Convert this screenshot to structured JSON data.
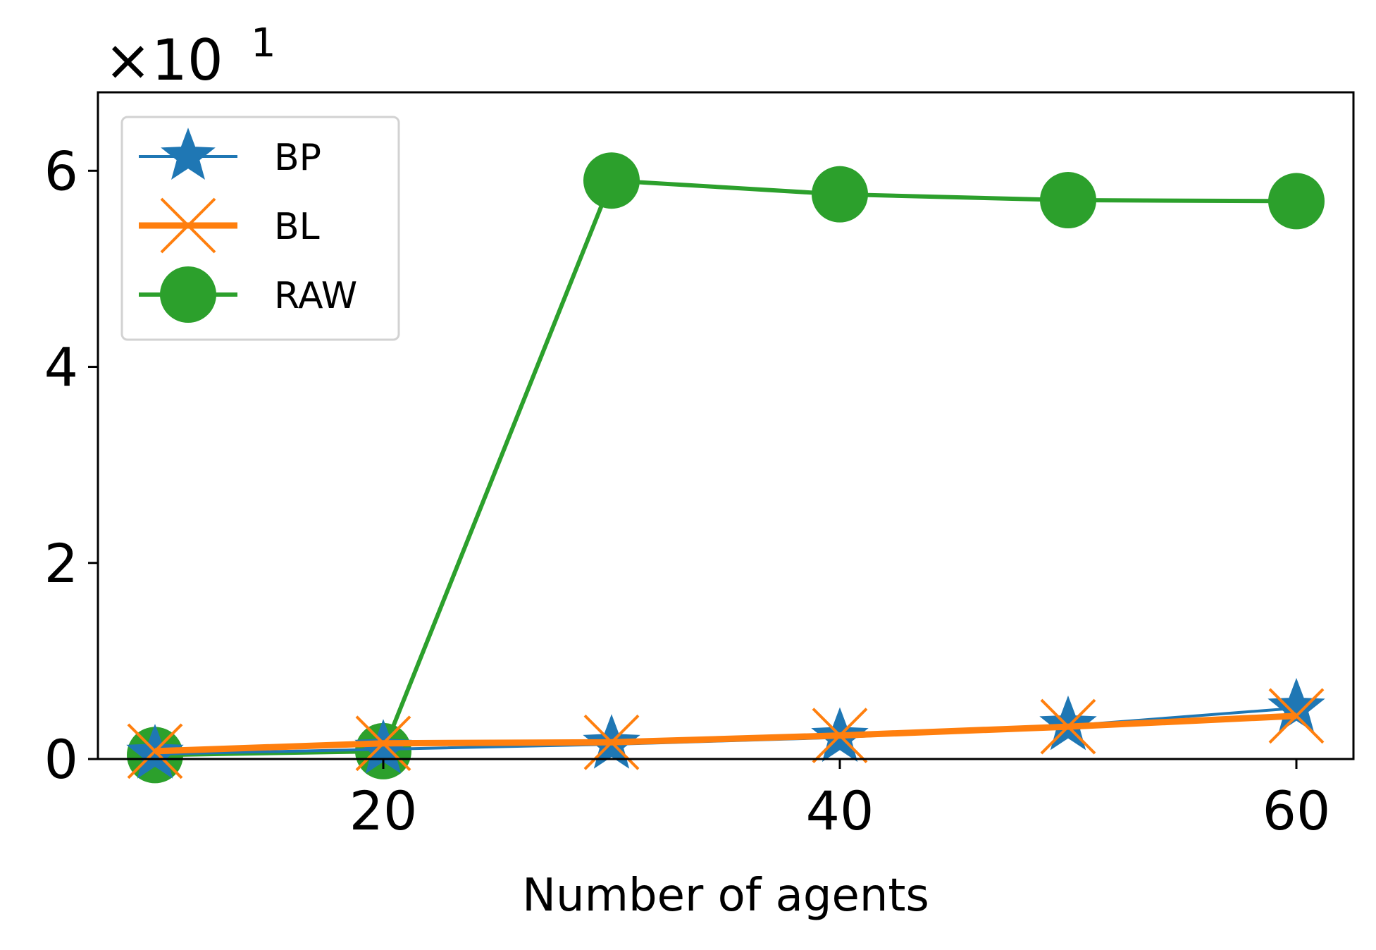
{
  "chart_data": {
    "type": "line",
    "xlabel": "Number of agents",
    "ylabel": "",
    "y_multiplier": {
      "base": "×10",
      "exponent": "1"
    },
    "xlim": [
      7.5,
      62.5
    ],
    "ylim": [
      0,
      6.8
    ],
    "x_ticks": [
      20,
      40,
      60
    ],
    "y_ticks": [
      0,
      2,
      4,
      6
    ],
    "legend_position": "upper-left",
    "grid": false,
    "series": [
      {
        "name": "BP",
        "color": "#1f77b4",
        "marker": "star",
        "x": [
          10,
          20,
          30,
          40,
          50,
          60
        ],
        "y": [
          0.05,
          0.1,
          0.15,
          0.22,
          0.34,
          0.52
        ]
      },
      {
        "name": "BL",
        "color": "#ff7f0e",
        "marker": "x",
        "x": [
          10,
          20,
          30,
          40,
          50,
          60
        ],
        "y": [
          0.08,
          0.16,
          0.17,
          0.24,
          0.33,
          0.44
        ]
      },
      {
        "name": "RAW",
        "color": "#2ca02c",
        "marker": "circle",
        "x": [
          10,
          20,
          30,
          40,
          50,
          60
        ],
        "y": [
          0.04,
          0.08,
          5.9,
          5.76,
          5.7,
          5.69
        ]
      }
    ]
  }
}
